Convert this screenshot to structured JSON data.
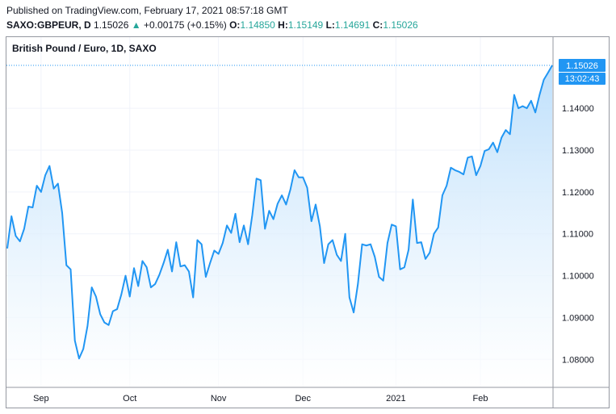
{
  "header": {
    "published": "Published on TradingView.com, February 17, 2021 08:57:18 GMT",
    "symbol": "SAXO:GBPEUR, D",
    "last": "1.15026",
    "arrow": "▲",
    "change": "+0.00175 (+0.15%)",
    "open_label": "O:",
    "open": "1.14850",
    "high_label": "H:",
    "high": "1.15149",
    "low_label": "L:",
    "low": "1.14691",
    "close_label": "C:",
    "close": "1.15026"
  },
  "price_badge": {
    "price": "1.15026",
    "countdown": "13:02:43"
  },
  "colors": {
    "line": "#2196f3",
    "fill_top": "#bbdefb",
    "badge": "#2196f3",
    "grid": "#f0f3fa",
    "up": "#26a69a"
  },
  "chart_data": {
    "type": "area",
    "title": "British Pound / Euro, 1D, SAXO",
    "ylim": [
      1.0735,
      1.157
    ],
    "y_ticks": [
      "1.08000",
      "1.09000",
      "1.10000",
      "1.11000",
      "1.12000",
      "1.13000",
      "1.14000"
    ],
    "x_ticks": [
      "Sep",
      "Oct",
      "Nov",
      "Dec",
      "2021",
      "Feb"
    ],
    "x_tick_positions": [
      8,
      29,
      50,
      70,
      92,
      112
    ],
    "grid": true,
    "values": [
      1.1065,
      1.1142,
      1.1095,
      1.1082,
      1.1112,
      1.1165,
      1.1163,
      1.1215,
      1.12,
      1.124,
      1.1262,
      1.1208,
      1.122,
      1.115,
      1.1025,
      1.1015,
      1.0845,
      1.0802,
      1.0825,
      1.088,
      1.0972,
      1.095,
      1.0908,
      1.0888,
      1.0882,
      1.0915,
      1.092,
      1.0955,
      1.1,
      1.095,
      1.1018,
      1.0975,
      1.1035,
      1.102,
      1.0972,
      1.098,
      1.1002,
      1.103,
      1.1062,
      1.101,
      1.108,
      1.1022,
      1.1025,
      1.101,
      1.0948,
      1.1085,
      1.1075,
      1.0997,
      1.103,
      1.106,
      1.1052,
      1.1078,
      1.112,
      1.1102,
      1.1148,
      1.108,
      1.112,
      1.1075,
      1.1145,
      1.1232,
      1.1228,
      1.1112,
      1.1155,
      1.1135,
      1.1172,
      1.1192,
      1.117,
      1.1205,
      1.1252,
      1.1235,
      1.1235,
      1.121,
      1.113,
      1.117,
      1.1118,
      1.103,
      1.1075,
      1.1085,
      1.105,
      1.1035,
      1.11,
      1.0948,
      1.0912,
      1.098,
      1.1075,
      1.1072,
      1.1075,
      1.1045,
      1.0997,
      1.0988,
      1.1078,
      1.1122,
      1.1118,
      1.1015,
      1.102,
      1.1062,
      1.1182,
      1.1078,
      1.108,
      1.104,
      1.1055,
      1.11,
      1.1115,
      1.1192,
      1.1215,
      1.1258,
      1.1252,
      1.1248,
      1.1242,
      1.1282,
      1.1285,
      1.124,
      1.1262,
      1.1298,
      1.1302,
      1.1318,
      1.1295,
      1.133,
      1.1348,
      1.1338,
      1.1432,
      1.14,
      1.1405,
      1.14,
      1.1418,
      1.139,
      1.1432,
      1.1468,
      1.1485,
      1.15026
    ]
  }
}
